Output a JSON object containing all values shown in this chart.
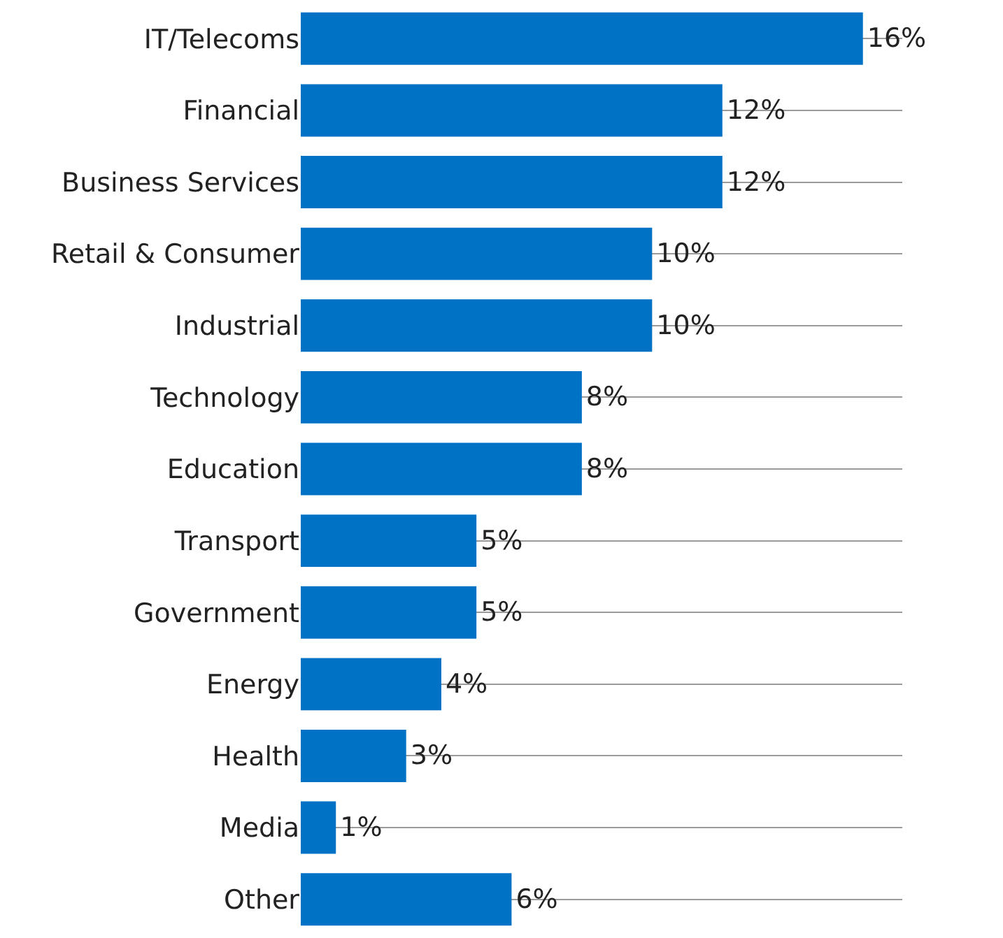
{
  "chart_data": {
    "type": "bar",
    "orientation": "horizontal",
    "categories": [
      "IT/Telecoms",
      "Financial",
      "Business Services",
      "Retail & Consumer",
      "Industrial",
      "Technology",
      "Education",
      "Transport",
      "Government",
      "Energy",
      "Health",
      "Media",
      "Other"
    ],
    "values": [
      16,
      12,
      12,
      10,
      10,
      8,
      8,
      5,
      5,
      4,
      3,
      1,
      6
    ],
    "value_labels": [
      "16%",
      "12%",
      "12%",
      "10%",
      "10%",
      "8%",
      "8%",
      "5%",
      "5%",
      "4%",
      "3%",
      "1%",
      "6%"
    ],
    "color": "#0072c6",
    "grid": "y",
    "legend": false
  }
}
